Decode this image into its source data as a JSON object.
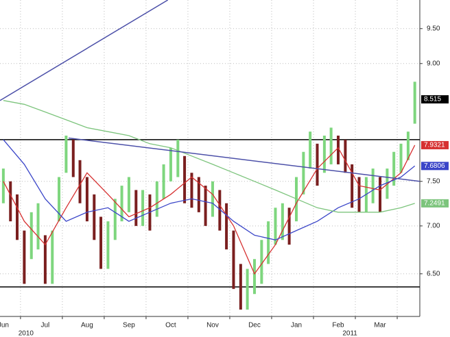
{
  "chart_data": {
    "type": "range_bar",
    "xlim": [
      -0.08,
      9.95
    ],
    "ylim": [
      6.085,
      9.93
    ],
    "log_y": true,
    "grid": true,
    "xticks": [
      {
        "value": 0,
        "label": "Jun"
      },
      {
        "value": 1,
        "label": "Jul"
      },
      {
        "value": 2,
        "label": "Aug"
      },
      {
        "value": 3,
        "label": "Sep"
      },
      {
        "value": 4,
        "label": "Oct"
      },
      {
        "value": 5,
        "label": "Nov"
      },
      {
        "value": 6,
        "label": "Dec"
      },
      {
        "value": 7,
        "label": "Jan"
      },
      {
        "value": 8,
        "label": "Feb"
      },
      {
        "value": 9,
        "label": "Mar"
      }
    ],
    "year_labels": [
      {
        "value": 0.54,
        "label": "2010"
      },
      {
        "value": 8.28,
        "label": "2011"
      }
    ],
    "yticks": [
      {
        "value": 6.5,
        "label": "6.50"
      },
      {
        "value": 7,
        "label": "7.00"
      },
      {
        "value": 7.5,
        "label": "7.50"
      },
      {
        "value": 9,
        "label": "9.00"
      },
      {
        "value": 9.5,
        "label": "9.50"
      }
    ],
    "price": {
      "up_color": "#7ed67e",
      "down_color": "#7a1f1f",
      "badge": 8.515,
      "badge_color": "#000000",
      "x": [
        0,
        0.17,
        0.33,
        0.5,
        0.67,
        0.83,
        1,
        1.17,
        1.33,
        1.5,
        1.67,
        1.83,
        2,
        2.17,
        2.33,
        2.5,
        2.67,
        2.83,
        3,
        3.17,
        3.33,
        3.5,
        3.67,
        3.83,
        4,
        4.17,
        4.33,
        4.5,
        4.67,
        4.83,
        5,
        5.17,
        5.33,
        5.5,
        5.67,
        5.83,
        6,
        6.17,
        6.33,
        6.5,
        6.67,
        6.83,
        7,
        7.17,
        7.33,
        7.5,
        7.67,
        7.83,
        8,
        8.17,
        8.33,
        8.5,
        8.67,
        8.83,
        9,
        9.17,
        9.33,
        9.5,
        9.67,
        9.83
      ],
      "values": [
        7.45,
        7.3,
        7.1,
        6.6,
        6.9,
        7.0,
        6.6,
        6.6,
        7.3,
        7.9,
        7.8,
        7.5,
        7.3,
        7.1,
        6.8,
        6.8,
        7.1,
        7.25,
        7.35,
        7.2,
        7.2,
        7.15,
        7.3,
        7.5,
        7.7,
        7.8,
        7.5,
        7.4,
        7.35,
        7.2,
        7.3,
        7.15,
        7.0,
        6.6,
        6.3,
        6.3,
        6.45,
        6.6,
        6.8,
        7.0,
        7.05,
        7.0,
        7.3,
        7.6,
        7.9,
        7.7,
        7.85,
        7.95,
        7.9,
        7.85,
        7.4,
        7.3,
        7.35,
        7.45,
        7.3,
        7.45,
        7.65,
        7.8,
        7.95,
        8.5
      ],
      "high": [
        7.65,
        7.5,
        7.35,
        6.95,
        7.15,
        7.25,
        6.9,
        6.95,
        7.55,
        8.05,
        8.0,
        7.75,
        7.55,
        7.35,
        7.1,
        7.05,
        7.3,
        7.45,
        7.55,
        7.4,
        7.4,
        7.35,
        7.5,
        7.7,
        7.9,
        8.0,
        7.8,
        7.6,
        7.55,
        7.45,
        7.5,
        7.4,
        7.25,
        6.95,
        6.6,
        6.55,
        6.65,
        6.85,
        7.05,
        7.2,
        7.25,
        7.2,
        7.55,
        7.85,
        8.1,
        7.95,
        8.05,
        8.15,
        8.05,
        8.0,
        7.7,
        7.55,
        7.55,
        7.65,
        7.55,
        7.65,
        7.85,
        7.95,
        8.1,
        8.75
      ],
      "low": [
        7.25,
        7.05,
        6.85,
        6.4,
        6.65,
        6.75,
        6.4,
        6.4,
        7.05,
        7.6,
        7.55,
        7.25,
        7.05,
        6.85,
        6.55,
        6.55,
        6.85,
        7.05,
        7.15,
        7.0,
        7.0,
        6.95,
        7.1,
        7.3,
        7.5,
        7.55,
        7.25,
        7.2,
        7.15,
        7.0,
        7.1,
        6.95,
        6.75,
        6.35,
        6.15,
        6.15,
        6.3,
        6.4,
        6.6,
        6.8,
        6.85,
        6.8,
        7.05,
        7.35,
        7.65,
        7.45,
        7.6,
        7.7,
        7.7,
        7.6,
        7.2,
        7.15,
        7.15,
        7.25,
        7.15,
        7.3,
        7.45,
        7.6,
        7.75,
        8.2
      ]
    },
    "series": [
      {
        "color": "#d63030",
        "badge": 7.9321,
        "x": [
          0,
          0.5,
          1,
          1.5,
          2,
          2.5,
          3,
          3.5,
          4,
          4.5,
          5,
          5.5,
          6,
          6.5,
          7,
          7.5,
          8,
          8.5,
          9,
          9.5,
          9.83
        ],
        "values": [
          7.5,
          7.05,
          6.8,
          7.2,
          7.6,
          7.35,
          7.1,
          7.2,
          7.35,
          7.55,
          7.35,
          7.0,
          6.5,
          6.8,
          7.25,
          7.65,
          7.9,
          7.45,
          7.4,
          7.6,
          7.9321
        ]
      },
      {
        "color": "#3a45c8",
        "badge": 7.6806,
        "x": [
          0,
          0.5,
          1,
          1.5,
          2,
          2.5,
          3,
          3.5,
          4,
          4.5,
          5,
          5.5,
          6,
          6.5,
          7,
          7.5,
          8,
          8.5,
          9,
          9.5,
          9.83
        ],
        "values": [
          8.0,
          7.7,
          7.3,
          7.05,
          7.15,
          7.2,
          7.05,
          7.15,
          7.25,
          7.3,
          7.25,
          7.05,
          6.9,
          6.85,
          6.95,
          7.05,
          7.2,
          7.3,
          7.45,
          7.55,
          7.6806
        ]
      },
      {
        "color": "#7cc47c",
        "badge": 7.2491,
        "x": [
          0,
          0.5,
          1,
          1.5,
          2,
          2.5,
          3,
          3.5,
          4,
          4.5,
          5,
          5.5,
          6,
          6.5,
          7,
          7.5,
          8,
          8.5,
          9,
          9.5,
          9.83
        ],
        "values": [
          8.5,
          8.45,
          8.35,
          8.25,
          8.15,
          8.1,
          8.05,
          7.95,
          7.9,
          7.8,
          7.7,
          7.6,
          7.5,
          7.4,
          7.3,
          7.2,
          7.15,
          7.15,
          7.15,
          7.2,
          7.2491
        ]
      }
    ],
    "hlines": [
      8.0,
      6.37
    ],
    "trendlines": [
      {
        "color": "#4b4fa8",
        "x": [
          -0.08,
          3.93
        ],
        "y": [
          8.5,
          9.93
        ]
      },
      {
        "color": "#4b4fa8",
        "x": [
          1.56,
          9.95
        ],
        "y": [
          8.02,
          7.5
        ]
      }
    ]
  }
}
